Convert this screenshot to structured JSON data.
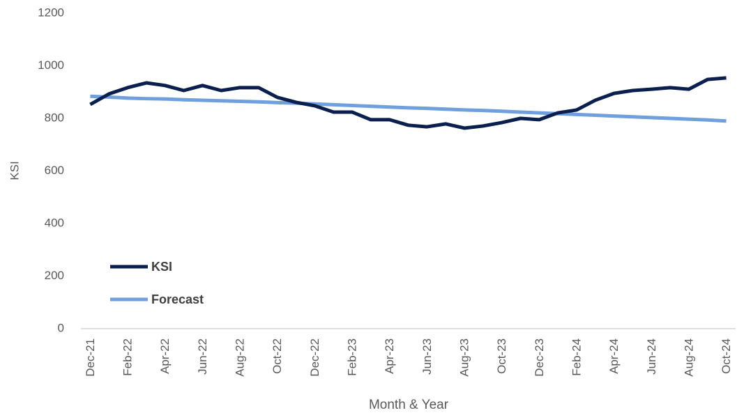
{
  "chart_data": {
    "type": "line",
    "x_label": "Month & Year",
    "y_label": "KSI",
    "categories": [
      "Dec-21",
      null,
      "Feb-22",
      null,
      "Apr-22",
      null,
      "Jun-22",
      null,
      "Aug-22",
      null,
      "Oct-22",
      null,
      "Dec-22",
      null,
      "Feb-23",
      null,
      "Apr-23",
      null,
      "Jun-23",
      null,
      "Aug-23",
      null,
      "Oct-23",
      null,
      "Dec-23",
      null,
      "Feb-24",
      null,
      "Apr-24",
      null,
      "Jun-24",
      null,
      "Aug-24",
      null,
      "Oct-24"
    ],
    "series": [
      {
        "name": "KSI",
        "color": "#0b1f4f",
        "values": [
          853,
          893,
          917,
          935,
          925,
          906,
          925,
          906,
          917,
          917,
          880,
          861,
          848,
          824,
          824,
          795,
          795,
          774,
          768,
          779,
          763,
          771,
          784,
          800,
          795,
          821,
          832,
          869,
          895,
          906,
          911,
          917,
          911,
          948,
          954
        ]
      },
      {
        "name": "Forecast",
        "color": "#6f9fdc",
        "values": [
          884,
          881,
          877,
          875,
          874,
          871,
          869,
          867,
          865,
          863,
          860,
          858,
          855,
          852,
          849,
          846,
          843,
          840,
          838,
          835,
          832,
          830,
          827,
          824,
          821,
          818,
          815,
          812,
          809,
          806,
          803,
          800,
          797,
          794,
          790
        ]
      }
    ],
    "ylim": [
      0,
      1200
    ],
    "yticks": [
      0,
      200,
      400,
      600,
      800,
      1000,
      1200
    ],
    "grid": false,
    "legend": "lower left"
  }
}
